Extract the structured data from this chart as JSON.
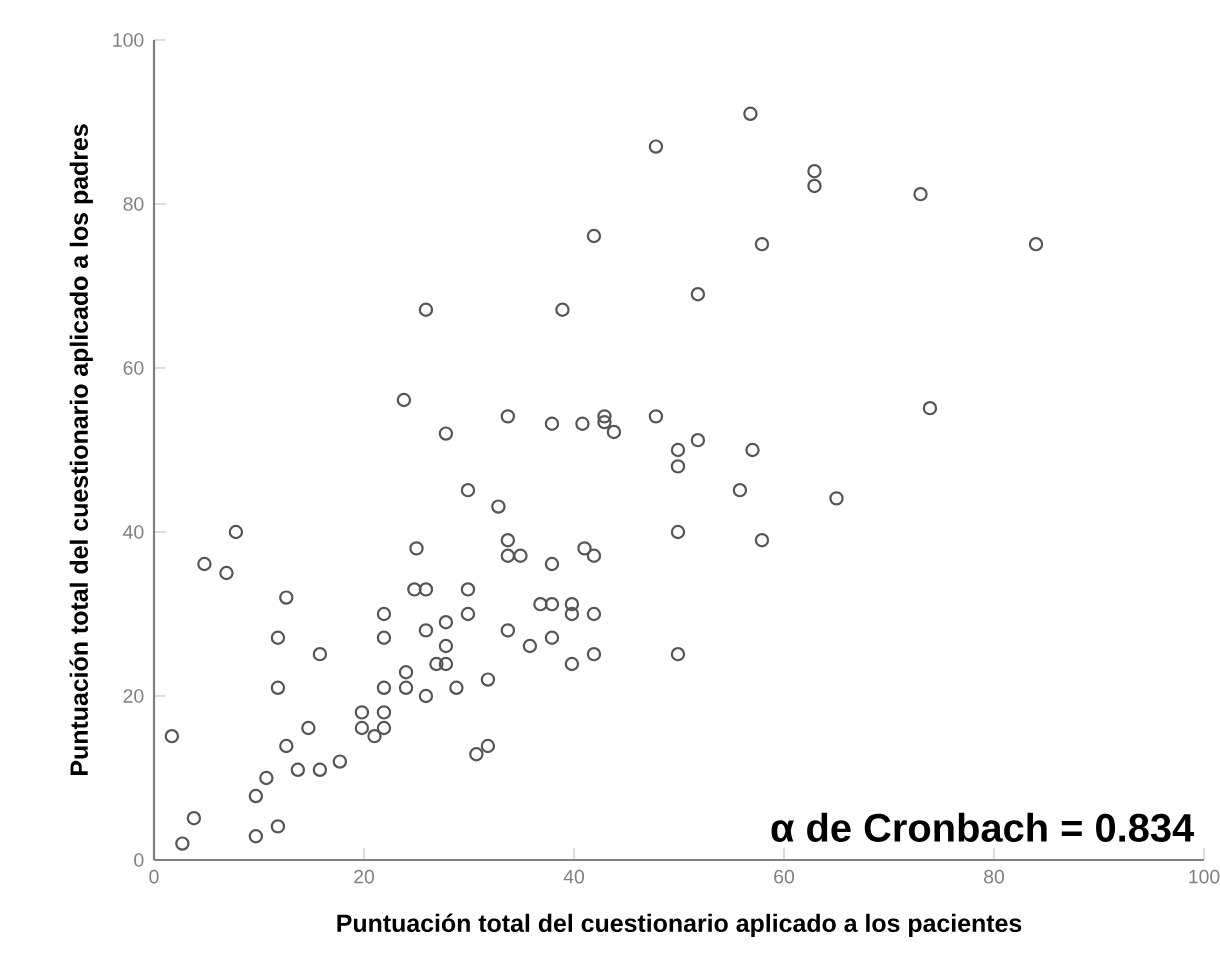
{
  "chart_data": {
    "type": "scatter",
    "xlabel": "Puntuación total del cuestionario aplicado a los pacientes",
    "ylabel": "Puntuación total del cuestionario aplicado a los padres",
    "xlim": [
      0,
      100
    ],
    "ylim": [
      0,
      100
    ],
    "xticks": [
      0,
      20,
      40,
      60,
      80,
      100
    ],
    "yticks": [
      0,
      20,
      40,
      60,
      80,
      100
    ],
    "grid": false,
    "marker": "circle",
    "annotations": [
      "α de Cronbach = 0.834"
    ],
    "series": [
      {
        "color": "#555555",
        "x": [
          56.8,
          47.8,
          62.9,
          62.9,
          73,
          84,
          57.9,
          51.8,
          73.9,
          41.9,
          25.9,
          38.9,
          23.8,
          27.8,
          33.7,
          37.9,
          40.8,
          42.9,
          42.9,
          43.8,
          47.8,
          51.8,
          49.9,
          57,
          49.9,
          55.8,
          65,
          49.9,
          57.9,
          49.9,
          29.9,
          32.8,
          7.8,
          4.8,
          6.9,
          25,
          33.7,
          33.7,
          34.9,
          37.9,
          41,
          41.9,
          12.6,
          24.8,
          25.9,
          29.9,
          21.9,
          27.8,
          29.9,
          25.9,
          21.9,
          11.8,
          15.8,
          27.8,
          26.9,
          27.8,
          36.8,
          37.9,
          39.8,
          39.8,
          41.9,
          33.7,
          35.8,
          37.9,
          39.8,
          41.9,
          24,
          24,
          21.9,
          25.9,
          28.8,
          31.8,
          11.8,
          1.7,
          19.8,
          21.9,
          19.8,
          21.9,
          21,
          14.7,
          12.6,
          17.7,
          15.8,
          13.7,
          10.7,
          9.7,
          30.7,
          31.8,
          3.8,
          2.7,
          9.7,
          11.8
        ],
        "values": [
          91,
          87,
          84,
          82.2,
          81.2,
          75.1,
          75.1,
          69,
          55.1,
          76.1,
          67.1,
          67.1,
          56.1,
          52,
          54.1,
          53.2,
          53.2,
          54.1,
          53.4,
          52.2,
          54.1,
          51.2,
          50,
          50,
          48,
          45.1,
          44.1,
          40,
          39,
          25.1,
          45.1,
          43.1,
          40,
          36.1,
          35,
          38,
          39,
          37.1,
          37.1,
          36.1,
          38,
          37.1,
          32,
          33,
          33,
          33,
          30,
          29,
          30,
          28,
          27.1,
          27.1,
          25.1,
          26.1,
          23.9,
          23.9,
          31.2,
          31.2,
          31.2,
          30,
          30,
          28,
          26.1,
          27.1,
          23.9,
          25.1,
          22.9,
          21,
          21,
          20,
          21,
          22,
          21,
          15.1,
          18,
          18,
          16.1,
          16.1,
          15.1,
          16.1,
          13.9,
          12,
          11,
          11,
          10,
          7.8,
          12.9,
          13.9,
          5.1,
          2,
          2.9,
          4.1
        ]
      }
    ]
  }
}
